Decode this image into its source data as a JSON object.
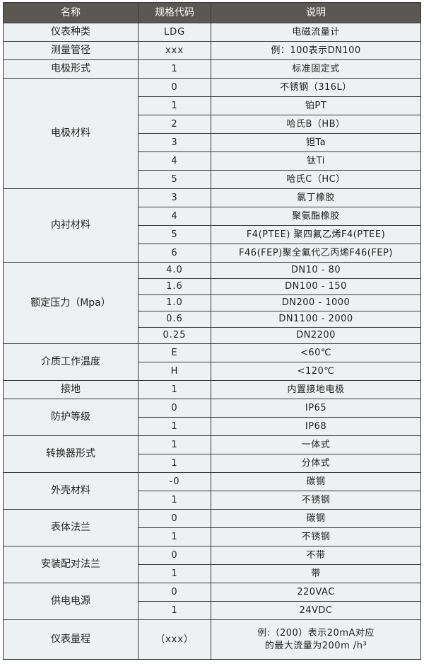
{
  "header": {
    "name": "名称",
    "code": "规格代码",
    "desc": "说明"
  },
  "groups": [
    {
      "name": "仪表种类",
      "items": [
        {
          "code": "LDG",
          "desc": "电磁流量计"
        }
      ]
    },
    {
      "name": "测量管径",
      "items": [
        {
          "code": "xxx",
          "desc": "例：100表示DN100"
        }
      ]
    },
    {
      "name": "电极形式",
      "items": [
        {
          "code": "1",
          "desc": "标准固定式"
        }
      ]
    },
    {
      "name": "电极材料",
      "items": [
        {
          "code": "0",
          "desc": "不锈钢（316L）"
        },
        {
          "code": "1",
          "desc": "铂PT"
        },
        {
          "code": "2",
          "desc": "哈氏B（HB）"
        },
        {
          "code": "3",
          "desc": "钽Ta"
        },
        {
          "code": "4",
          "desc": "钛Ti"
        },
        {
          "code": "5",
          "desc": "哈氏C（HC）"
        }
      ]
    },
    {
      "name": "内衬材料",
      "items": [
        {
          "code": "3",
          "desc": "氯丁橡胶"
        },
        {
          "code": "4",
          "desc": "聚氨酯橡胶"
        },
        {
          "code": "5",
          "desc": "F4(PTEE) 聚四氟乙烯F4(PTEE)"
        },
        {
          "code": "6",
          "desc": "F46(FEP)聚全氟代乙丙烯F46(FEP)"
        }
      ]
    },
    {
      "name": "额定压力（Mpa）",
      "items": [
        {
          "code": "4.0",
          "desc": "DN10 - 80"
        },
        {
          "code": "1.6",
          "desc": "DN100 - 150"
        },
        {
          "code": "1.0",
          "desc": "DN200 - 1000"
        },
        {
          "code": "0.6",
          "desc": "DN1100 - 2000"
        },
        {
          "code": "0.25",
          "desc": "DN2200"
        }
      ]
    },
    {
      "name": "介质工作温度",
      "items": [
        {
          "code": "E",
          "desc": "<60℃"
        },
        {
          "code": "H",
          "desc": "<120℃"
        }
      ]
    },
    {
      "name": "接地",
      "items": [
        {
          "code": "1",
          "desc": "内置接地电极"
        }
      ]
    },
    {
      "name": "防护等级",
      "items": [
        {
          "code": "0",
          "desc": "IP65"
        },
        {
          "code": "1",
          "desc": "IP68"
        }
      ]
    },
    {
      "name": "转换器形式",
      "items": [
        {
          "code": "1",
          "desc": "一体式"
        },
        {
          "code": "1",
          "desc": "分体式"
        }
      ]
    },
    {
      "name": "外壳材料",
      "items": [
        {
          "code": "-0",
          "desc": "碳钢"
        },
        {
          "code": "1",
          "desc": "不锈钢"
        }
      ]
    },
    {
      "name": "表体法兰",
      "items": [
        {
          "code": "0",
          "desc": "碳钢"
        },
        {
          "code": "1",
          "desc": "不锈钢"
        }
      ]
    },
    {
      "name": "安装配对法兰",
      "items": [
        {
          "code": "0",
          "desc": "不带"
        },
        {
          "code": "1",
          "desc": "带"
        }
      ]
    },
    {
      "name": "供电电源",
      "items": [
        {
          "code": "0",
          "desc": "220VAC"
        },
        {
          "code": "1",
          "desc": "24VDC"
        }
      ]
    },
    {
      "name": "仪表量程",
      "items": [
        {
          "code": "（xxx）",
          "desc": "例:（200）表示20mA对应的最大流量为200m /h³"
        }
      ]
    }
  ]
}
